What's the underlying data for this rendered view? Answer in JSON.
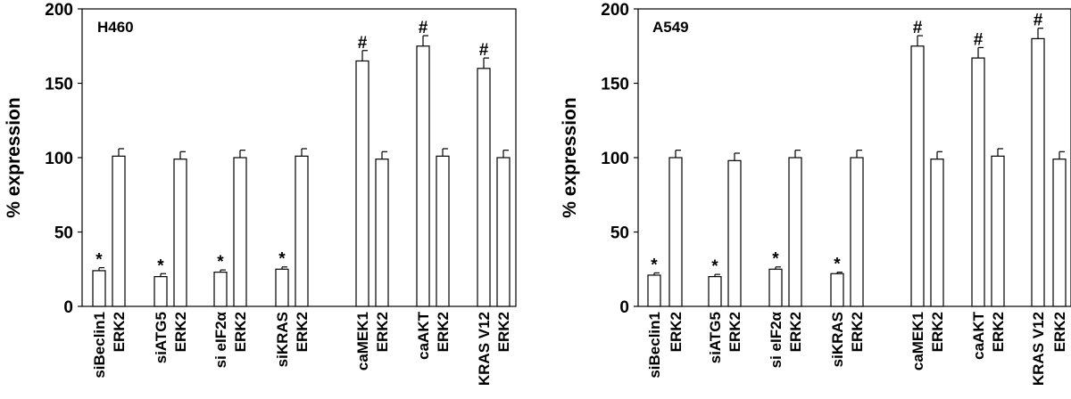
{
  "chart_data": [
    {
      "type": "bar",
      "panel_label": "H460",
      "ylabel": "% expression",
      "ylim": [
        0,
        200
      ],
      "yticks": [
        0,
        50,
        100,
        150,
        200
      ],
      "categories": [
        "siBeclin1",
        "ERK2",
        "siATG5",
        "ERK2",
        "si eIF2α",
        "ERK2",
        "siKRAS",
        "ERK2",
        "caMEK1",
        "ERK2",
        "caAKT",
        "ERK2",
        "KRAS V12",
        "ERK2"
      ],
      "values": [
        24,
        101,
        20,
        99,
        23,
        100,
        25,
        101,
        165,
        99,
        175,
        101,
        160,
        100
      ],
      "errors": [
        2,
        5,
        2,
        5,
        1.5,
        5,
        1.5,
        5,
        7,
        5,
        7,
        5,
        7,
        5
      ],
      "annotations": [
        "*",
        "",
        "*",
        "",
        "*",
        "",
        "*",
        "",
        "#",
        "",
        "#",
        "",
        "#",
        ""
      ],
      "grid": false,
      "legend": "none"
    },
    {
      "type": "bar",
      "panel_label": "A549",
      "ylabel": "% expression",
      "ylim": [
        0,
        200
      ],
      "yticks": [
        0,
        50,
        100,
        150,
        200
      ],
      "categories": [
        "siBeclin1",
        "ERK2",
        "siATG5",
        "ERK2",
        "si eIF2α",
        "ERK2",
        "siKRAS",
        "ERK2",
        "caMEK1",
        "ERK2",
        "caAKT",
        "ERK2",
        "KRAS V12",
        "ERK2"
      ],
      "values": [
        21,
        100,
        20,
        98,
        25,
        100,
        22,
        100,
        175,
        99,
        167,
        101,
        180,
        99
      ],
      "errors": [
        1.5,
        5,
        1.5,
        5,
        1.5,
        5,
        1,
        5,
        7,
        5,
        7,
        5,
        7,
        5
      ],
      "annotations": [
        "*",
        "",
        "*",
        "",
        "*",
        "",
        "*",
        "",
        "#",
        "",
        "#",
        "",
        "#",
        ""
      ],
      "grid": false,
      "legend": "none"
    }
  ]
}
